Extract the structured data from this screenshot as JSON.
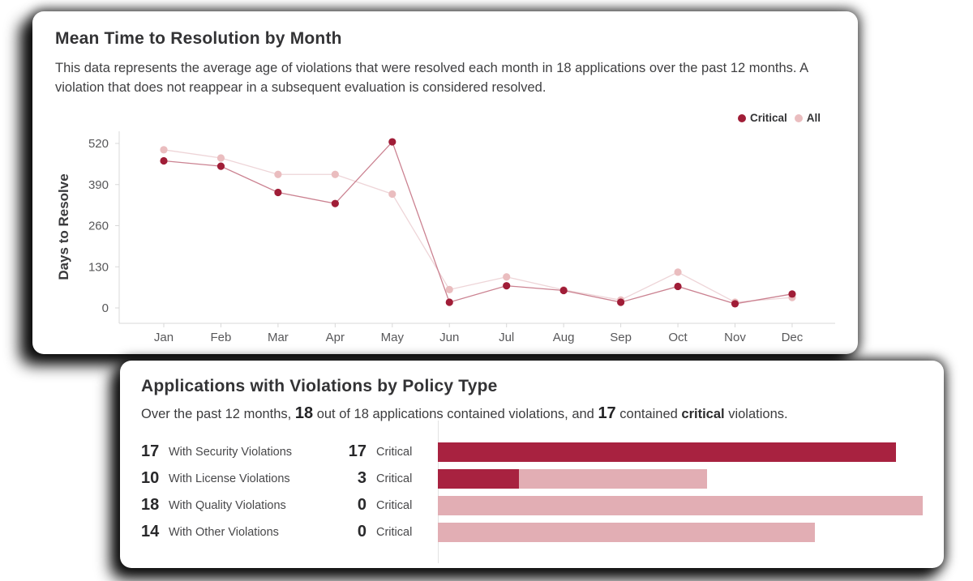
{
  "mtr_card": {
    "title": "Mean Time to Resolution by Month",
    "description": "This data represents the average age of violations that were resolved each month in 18 applications over the past 12 months. A violation that does not reappear in a subsequent evaluation is considered resolved.",
    "ylabel": "Days to Resolve",
    "legend": [
      {
        "label": "Critical",
        "color": "#a01d37"
      },
      {
        "label": "All",
        "color": "#eabdbf"
      }
    ]
  },
  "violations_card": {
    "title": "Applications with Violations by Policy Type",
    "subtitle": [
      {
        "text": "Over the past 12 months, ",
        "style": "normal"
      },
      {
        "text": "18",
        "style": "big"
      },
      {
        "text": " out of 18 applications contained violations, and ",
        "style": "normal"
      },
      {
        "text": "17",
        "style": "big"
      },
      {
        "text": " contained ",
        "style": "normal"
      },
      {
        "text": "critical",
        "style": "bold"
      },
      {
        "text": " violations.",
        "style": "normal"
      }
    ],
    "critical_label": "Critical"
  },
  "chart_data": [
    {
      "type": "line",
      "title": "Mean Time to Resolution by Month",
      "xlabel": "",
      "ylabel": "Days to Resolve",
      "x": [
        "Jan",
        "Feb",
        "Mar",
        "Apr",
        "May",
        "Jun",
        "Jul",
        "Aug",
        "Sep",
        "Oct",
        "Nov",
        "Dec"
      ],
      "yticks": [
        0,
        130,
        260,
        390,
        520
      ],
      "ylim": [
        0,
        560
      ],
      "grid": false,
      "legend_position": "top-right",
      "series": [
        {
          "name": "All",
          "values": [
            500,
            474,
            422,
            422,
            360,
            58,
            98,
            57,
            25,
            113,
            18,
            33
          ],
          "point_color": "#eabdbf",
          "line_color": "#eed5d8"
        },
        {
          "name": "Critical",
          "values": [
            465,
            448,
            365,
            330,
            525,
            18,
            70,
            55,
            18,
            68,
            13,
            44
          ],
          "point_color": "#a01d37",
          "line_color": "#cb8291"
        }
      ],
      "axis_color": "#d8d8d8",
      "tick_label_color": "#58585a"
    },
    {
      "type": "bar",
      "orientation": "horizontal",
      "title": "Applications with Violations by Policy Type",
      "categories": [
        "With Security Violations",
        "With License Violations",
        "With Quality Violations",
        "With Other Violations"
      ],
      "series": [
        {
          "name": "Applications with violations",
          "values": [
            17,
            10,
            18,
            14
          ]
        },
        {
          "name": "Critical",
          "values": [
            17,
            3,
            0,
            0
          ]
        }
      ],
      "xlim": [
        0,
        18
      ],
      "colors": {
        "critical": "#a82240",
        "all": "#e2aeb4"
      }
    }
  ]
}
